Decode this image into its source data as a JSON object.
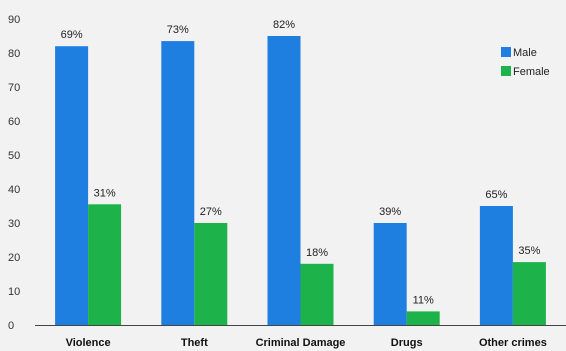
{
  "chart_data": {
    "type": "bar",
    "title": "",
    "xlabel": "",
    "ylabel": "",
    "ylim": [
      0,
      90
    ],
    "yticks": [
      0,
      10,
      20,
      30,
      40,
      50,
      60,
      70,
      80,
      90
    ],
    "grid": false,
    "legend_position": "top-right",
    "categories": [
      "Violence",
      "Theft",
      "Criminal Damage",
      "Drugs",
      "Other crimes"
    ],
    "series": [
      {
        "name": "Male",
        "color": "#1f7fe0",
        "values": [
          82,
          83.5,
          85,
          30,
          35
        ],
        "labels": [
          "69%",
          "73%",
          "82%",
          "39%",
          "65%"
        ]
      },
      {
        "name": "Female",
        "color": "#1db34a",
        "values": [
          35.5,
          30,
          18,
          4,
          18.5
        ],
        "labels": [
          "31%",
          "27%",
          "18%",
          "11%",
          "35%"
        ]
      }
    ]
  }
}
